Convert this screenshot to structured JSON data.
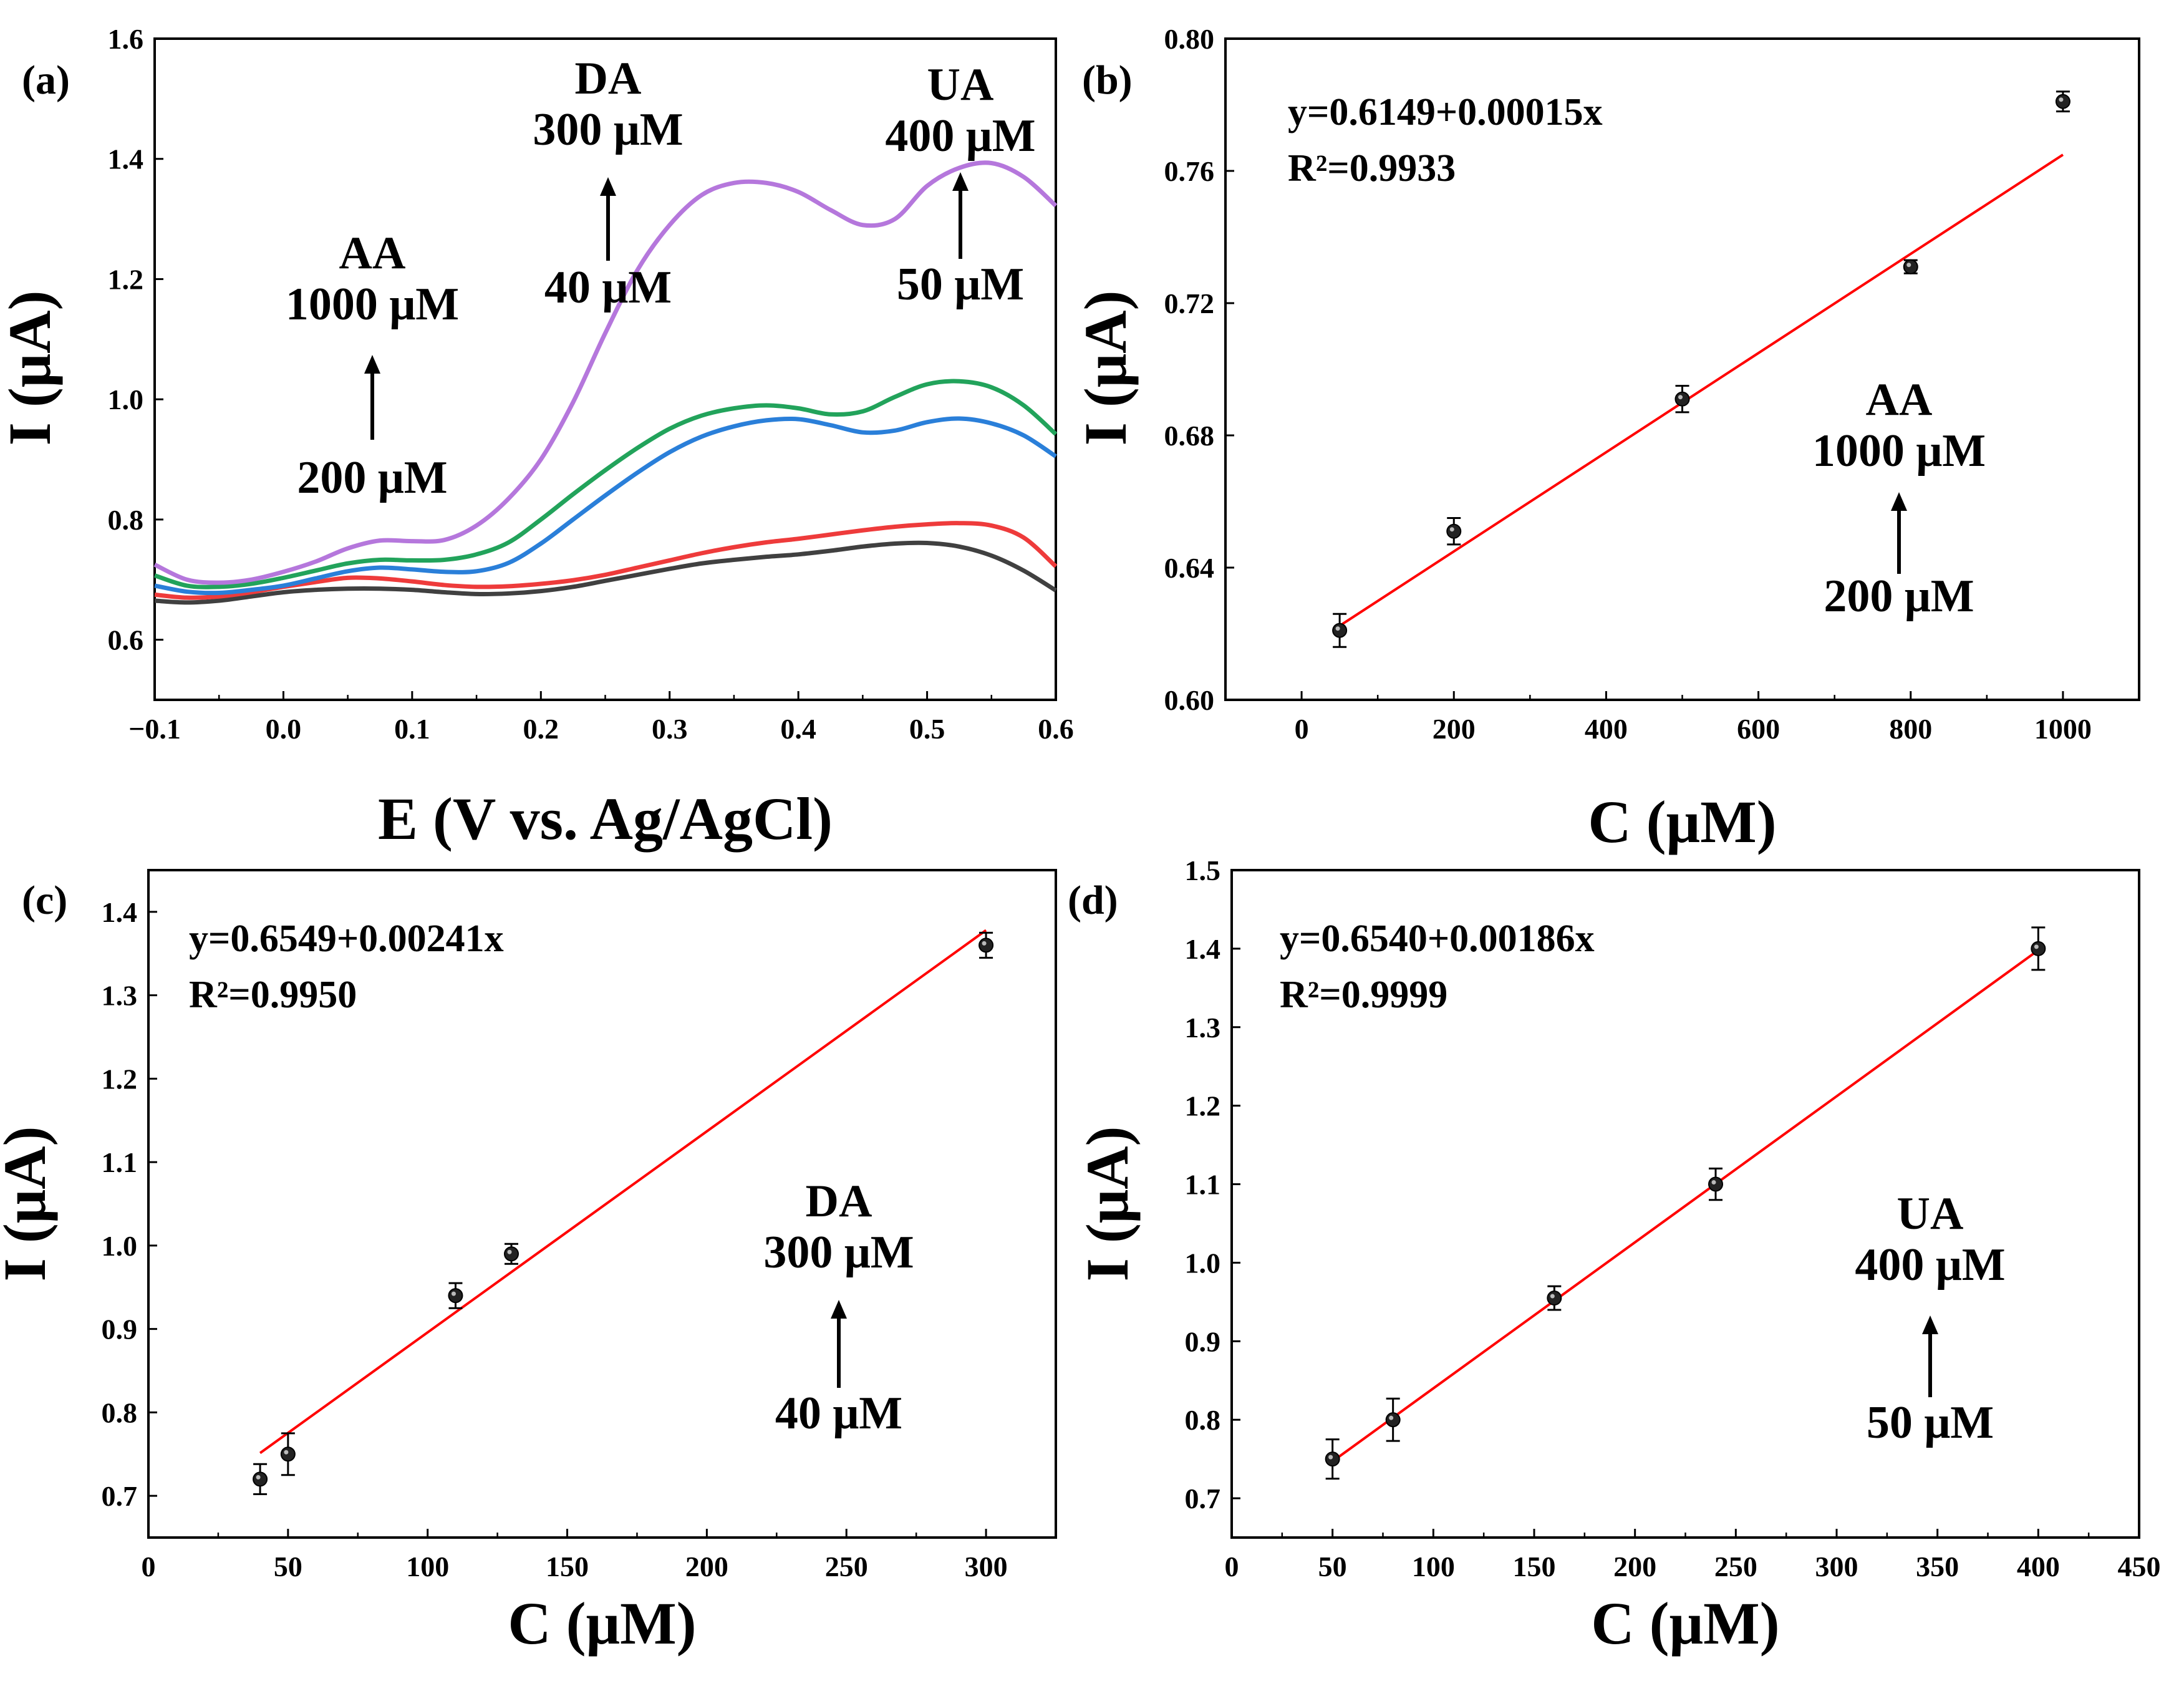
{
  "figure": {
    "panels": [
      "a",
      "b",
      "c",
      "d"
    ]
  },
  "chart_data": [
    {
      "id": "a",
      "type": "line",
      "panel_label": "(a)",
      "xlabel": "E (V vs. Ag/AgCl)",
      "ylabel": "I (μA)",
      "xlim": [
        -0.1,
        0.6
      ],
      "ylim": [
        0.5,
        1.6
      ],
      "xticks": [
        -0.1,
        0.0,
        0.1,
        0.2,
        0.3,
        0.4,
        0.5,
        0.6
      ],
      "xtick_labels": [
        "−0.1",
        "0.0",
        "0.1",
        "0.2",
        "0.3",
        "0.4",
        "0.5",
        "0.6"
      ],
      "yticks": [
        0.6,
        0.8,
        1.0,
        1.2,
        1.4,
        1.6
      ],
      "ytick_labels": [
        "0.6",
        "0.8",
        "1.0",
        "1.2",
        "1.4",
        "1.6"
      ],
      "x": [
        -0.1,
        -0.075,
        -0.05,
        -0.025,
        0.0,
        0.025,
        0.05,
        0.075,
        0.1,
        0.125,
        0.15,
        0.175,
        0.2,
        0.225,
        0.25,
        0.275,
        0.3,
        0.325,
        0.35,
        0.375,
        0.4,
        0.425,
        0.45,
        0.475,
        0.5,
        0.525,
        0.55,
        0.575,
        0.6
      ],
      "series": [
        {
          "name": "black",
          "color": "#404040",
          "values": [
            0.665,
            0.662,
            0.665,
            0.672,
            0.679,
            0.683,
            0.685,
            0.685,
            0.683,
            0.679,
            0.676,
            0.677,
            0.681,
            0.688,
            0.698,
            0.708,
            0.718,
            0.727,
            0.733,
            0.738,
            0.742,
            0.748,
            0.755,
            0.76,
            0.761,
            0.755,
            0.74,
            0.715,
            0.682
          ]
        },
        {
          "name": "red",
          "color": "#ee3b3b",
          "values": [
            0.675,
            0.67,
            0.672,
            0.679,
            0.688,
            0.696,
            0.703,
            0.702,
            0.697,
            0.691,
            0.688,
            0.689,
            0.693,
            0.699,
            0.708,
            0.72,
            0.732,
            0.744,
            0.754,
            0.762,
            0.768,
            0.775,
            0.782,
            0.788,
            0.792,
            0.794,
            0.79,
            0.77,
            0.722
          ]
        },
        {
          "name": "blue",
          "color": "#2a7fd9",
          "values": [
            0.69,
            0.68,
            0.678,
            0.683,
            0.69,
            0.702,
            0.714,
            0.72,
            0.717,
            0.713,
            0.714,
            0.728,
            0.76,
            0.8,
            0.84,
            0.878,
            0.912,
            0.938,
            0.955,
            0.965,
            0.967,
            0.957,
            0.945,
            0.948,
            0.962,
            0.968,
            0.96,
            0.94,
            0.905
          ]
        },
        {
          "name": "green",
          "color": "#22a35b",
          "values": [
            0.707,
            0.69,
            0.688,
            0.693,
            0.703,
            0.715,
            0.727,
            0.733,
            0.732,
            0.733,
            0.742,
            0.762,
            0.8,
            0.842,
            0.882,
            0.919,
            0.951,
            0.973,
            0.985,
            0.99,
            0.985,
            0.975,
            0.98,
            1.004,
            1.025,
            1.03,
            1.02,
            0.99,
            0.942
          ]
        },
        {
          "name": "purple",
          "color": "#b577dc",
          "values": [
            0.725,
            0.7,
            0.695,
            0.7,
            0.713,
            0.73,
            0.752,
            0.765,
            0.764,
            0.766,
            0.79,
            0.835,
            0.9,
            0.995,
            1.11,
            1.215,
            1.29,
            1.34,
            1.36,
            1.36,
            1.345,
            1.315,
            1.29,
            1.3,
            1.355,
            1.385,
            1.393,
            1.37,
            1.322
          ]
        }
      ],
      "annotations": [
        {
          "id": "aa",
          "lines": [
            "AA",
            "1000 μM"
          ],
          "lower": "200 μM"
        },
        {
          "id": "da",
          "lines": [
            "DA",
            "300 μM"
          ],
          "lower": "40 μM"
        },
        {
          "id": "ua",
          "lines": [
            "UA",
            "400 μM"
          ],
          "lower": "50 μM"
        }
      ]
    },
    {
      "id": "b",
      "type": "scatter",
      "panel_label": "(b)",
      "xlabel": "C (μM)",
      "ylabel": "I (μA)",
      "xlim": [
        -100,
        1100
      ],
      "ylim": [
        0.6,
        0.8
      ],
      "xticks": [
        0,
        200,
        400,
        600,
        800,
        1000
      ],
      "xtick_labels": [
        "0",
        "200",
        "400",
        "600",
        "800",
        "1000"
      ],
      "yticks": [
        0.6,
        0.64,
        0.68,
        0.72,
        0.76,
        0.8
      ],
      "ytick_labels": [
        "0.60",
        "0.64",
        "0.68",
        "0.72",
        "0.76",
        "0.80"
      ],
      "points": {
        "x": [
          50,
          200,
          500,
          800,
          1000
        ],
        "y": [
          0.621,
          0.651,
          0.691,
          0.731,
          0.781
        ],
        "err": [
          0.005,
          0.004,
          0.004,
          0.002,
          0.003
        ]
      },
      "fit": {
        "intercept": 0.6149,
        "slope": 0.00015,
        "x_range": [
          50,
          1000
        ],
        "color": "#ff0000"
      },
      "equation": "y=0.6149+0.00015x",
      "r2_label": "R²=0.9933",
      "annotation": {
        "lines": [
          "AA",
          "1000 μM"
        ],
        "lower": "200 μM"
      }
    },
    {
      "id": "c",
      "type": "scatter",
      "panel_label": "(c)",
      "xlabel": "C (μM)",
      "ylabel": "I (μA)",
      "xlim": [
        0,
        325
      ],
      "ylim": [
        0.65,
        1.45
      ],
      "xticks": [
        0,
        50,
        100,
        150,
        200,
        250,
        300
      ],
      "xtick_labels": [
        "0",
        "50",
        "100",
        "150",
        "200",
        "250",
        "300"
      ],
      "yticks": [
        0.7,
        0.8,
        0.9,
        1.0,
        1.1,
        1.2,
        1.3,
        1.4
      ],
      "ytick_labels": [
        "0.7",
        "0.8",
        "0.9",
        "1.0",
        "1.1",
        "1.2",
        "1.3",
        "1.4"
      ],
      "points": {
        "x": [
          40,
          50,
          110,
          130,
          300
        ],
        "y": [
          0.72,
          0.75,
          0.94,
          0.99,
          1.36
        ],
        "err": [
          0.018,
          0.025,
          0.015,
          0.012,
          0.015
        ]
      },
      "fit": {
        "intercept": 0.6549,
        "slope": 0.00241,
        "x_range": [
          40,
          300
        ],
        "color": "#ff0000"
      },
      "equation": "y=0.6549+0.00241x",
      "r2_label": "R²=0.9950",
      "annotation": {
        "lines": [
          "DA",
          "300 μM"
        ],
        "lower": "40 μM"
      }
    },
    {
      "id": "d",
      "type": "scatter",
      "panel_label": "(d)",
      "xlabel": "C (μM)",
      "ylabel": "I (μA)",
      "xlim": [
        0,
        450
      ],
      "ylim": [
        0.65,
        1.5
      ],
      "xticks": [
        0,
        50,
        100,
        150,
        200,
        250,
        300,
        350,
        400,
        450
      ],
      "xtick_labels": [
        "0",
        "50",
        "100",
        "150",
        "200",
        "250",
        "300",
        "350",
        "400",
        "450"
      ],
      "yticks": [
        0.7,
        0.8,
        0.9,
        1.0,
        1.1,
        1.2,
        1.3,
        1.4,
        1.5
      ],
      "ytick_labels": [
        "0.7",
        "0.8",
        "0.9",
        "1.0",
        "1.1",
        "1.2",
        "1.3",
        "1.4",
        "1.5"
      ],
      "points": {
        "x": [
          50,
          80,
          160,
          240,
          400
        ],
        "y": [
          0.75,
          0.8,
          0.955,
          1.1,
          1.4
        ],
        "err": [
          0.025,
          0.027,
          0.015,
          0.02,
          0.027
        ]
      },
      "fit": {
        "intercept": 0.654,
        "slope": 0.00186,
        "x_range": [
          50,
          400
        ],
        "color": "#ff0000"
      },
      "equation": "y=0.6540+0.00186x",
      "r2_label": "R²=0.9999",
      "annotation": {
        "lines": [
          "UA",
          "400 μM"
        ],
        "lower": "50 μM"
      }
    }
  ]
}
